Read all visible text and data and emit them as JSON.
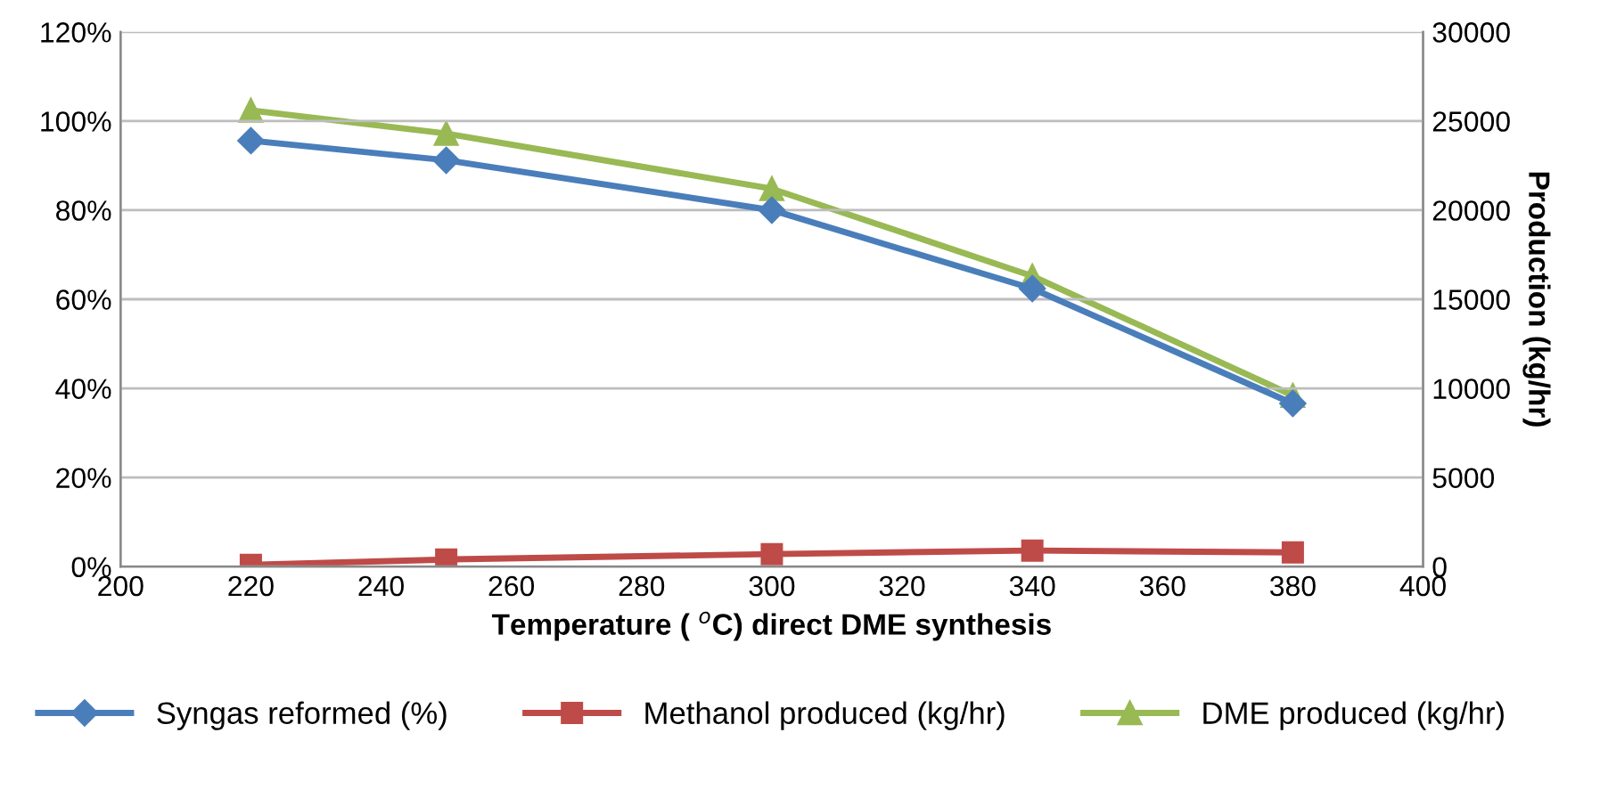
{
  "chart_data": {
    "type": "line",
    "xlabel": "Temperature ( $^{o}$C) direct DME synthesis",
    "y2label": "Production (kg/hr)",
    "x": [
      220,
      250,
      300,
      340,
      380
    ],
    "series": [
      {
        "name": "Syngas reformed (%)",
        "color": "#4a7ebb",
        "marker": "diamond",
        "values": [
          95.6,
          91.2,
          80,
          62.4,
          36.6
        ]
      },
      {
        "name": "Methanol produced (kg/hr)",
        "color": "#be4b48",
        "marker": "square",
        "axis": "y2",
        "values": [
          100,
          400,
          700,
          900,
          800
        ]
      },
      {
        "name": "DME produced (kg/hr)",
        "color": "#98b954",
        "marker": "triangle",
        "axis": "y2",
        "values": [
          25600,
          24300,
          21200,
          16300,
          9600
        ]
      }
    ],
    "xlim": [
      200,
      400
    ],
    "xticks": [
      200,
      220,
      240,
      260,
      280,
      300,
      320,
      340,
      360,
      380,
      400
    ],
    "ylim": [
      0,
      120
    ],
    "yticks": [
      {
        "value": 0,
        "label": "0%"
      },
      {
        "value": 20,
        "label": "20%"
      },
      {
        "value": 40,
        "label": "40%"
      },
      {
        "value": 60,
        "label": "60%"
      },
      {
        "value": 80,
        "label": "80%"
      },
      {
        "value": 100,
        "label": "100%"
      },
      {
        "value": 120,
        "label": "120%"
      }
    ],
    "y2lim": [
      0,
      30000
    ],
    "y2ticks": [
      0,
      5000,
      10000,
      15000,
      20000,
      25000,
      30000
    ],
    "grid": "y",
    "legend": "bottom"
  }
}
